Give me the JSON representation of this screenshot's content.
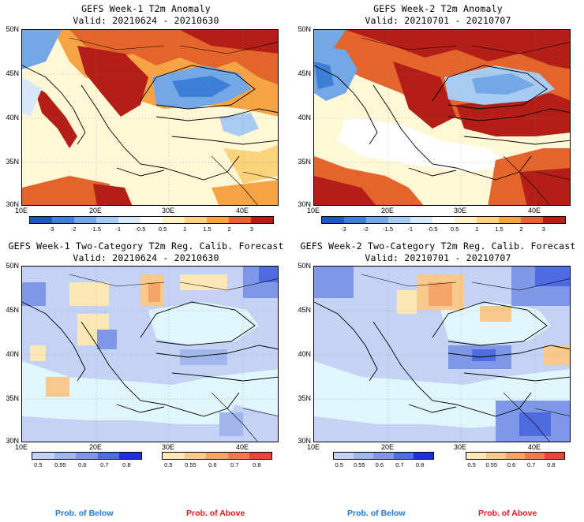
{
  "panels": [
    {
      "title": "GEFS Week-1 T2m Anomaly",
      "valid": "Valid: 20210624 - 20210630"
    },
    {
      "title": "GEFS Week-2 T2m Anomaly",
      "valid": "Valid: 20210701 - 20210707"
    },
    {
      "title": "GEFS Week-1 Two-Category T2m Reg. Calib. Forecast",
      "valid": "Valid: 20210624 - 20210630"
    },
    {
      "title": "GEFS Week-2 Two-Category T2m Reg. Calib. Forecast",
      "valid": "Valid: 20210701 - 20210707"
    }
  ],
  "axes": {
    "lat_labels": [
      "50N",
      "45N",
      "40N",
      "35N",
      "30N"
    ],
    "lon_labels": [
      "10E",
      "20E",
      "30E",
      "40E"
    ]
  },
  "anomaly_colorbar": {
    "labels": [
      "-3",
      "-2",
      "-1.5",
      "-1",
      "-0.5",
      "0.5",
      "1",
      "1.5",
      "2",
      "3"
    ],
    "colors": [
      "#1e5ab8",
      "#3c7fd6",
      "#73a7e6",
      "#a8cbf2",
      "#d6e8f9",
      "#ffffff",
      "#fff1c2",
      "#fbd37a",
      "#f5a345",
      "#e4652c",
      "#b31f16"
    ]
  },
  "prob_colorbars": {
    "below_labels": [
      "0.5",
      "0.55",
      "0.6",
      "0.7",
      "0.8"
    ],
    "below_colors": [
      "#c3d2f5",
      "#a2b6ee",
      "#7e97e6",
      "#4f6be0",
      "#1f2fd6"
    ],
    "above_labels": [
      "0.5",
      "0.55",
      "0.6",
      "0.7",
      "0.8"
    ],
    "above_colors": [
      "#fde7b4",
      "#f7c98a",
      "#f3a469",
      "#ee7850",
      "#e44735"
    ]
  },
  "footer": {
    "below": "Prob. of Below",
    "above": "Prob. of Above",
    "below_color": "#1e78dc",
    "above_color": "#e21b1b"
  }
}
